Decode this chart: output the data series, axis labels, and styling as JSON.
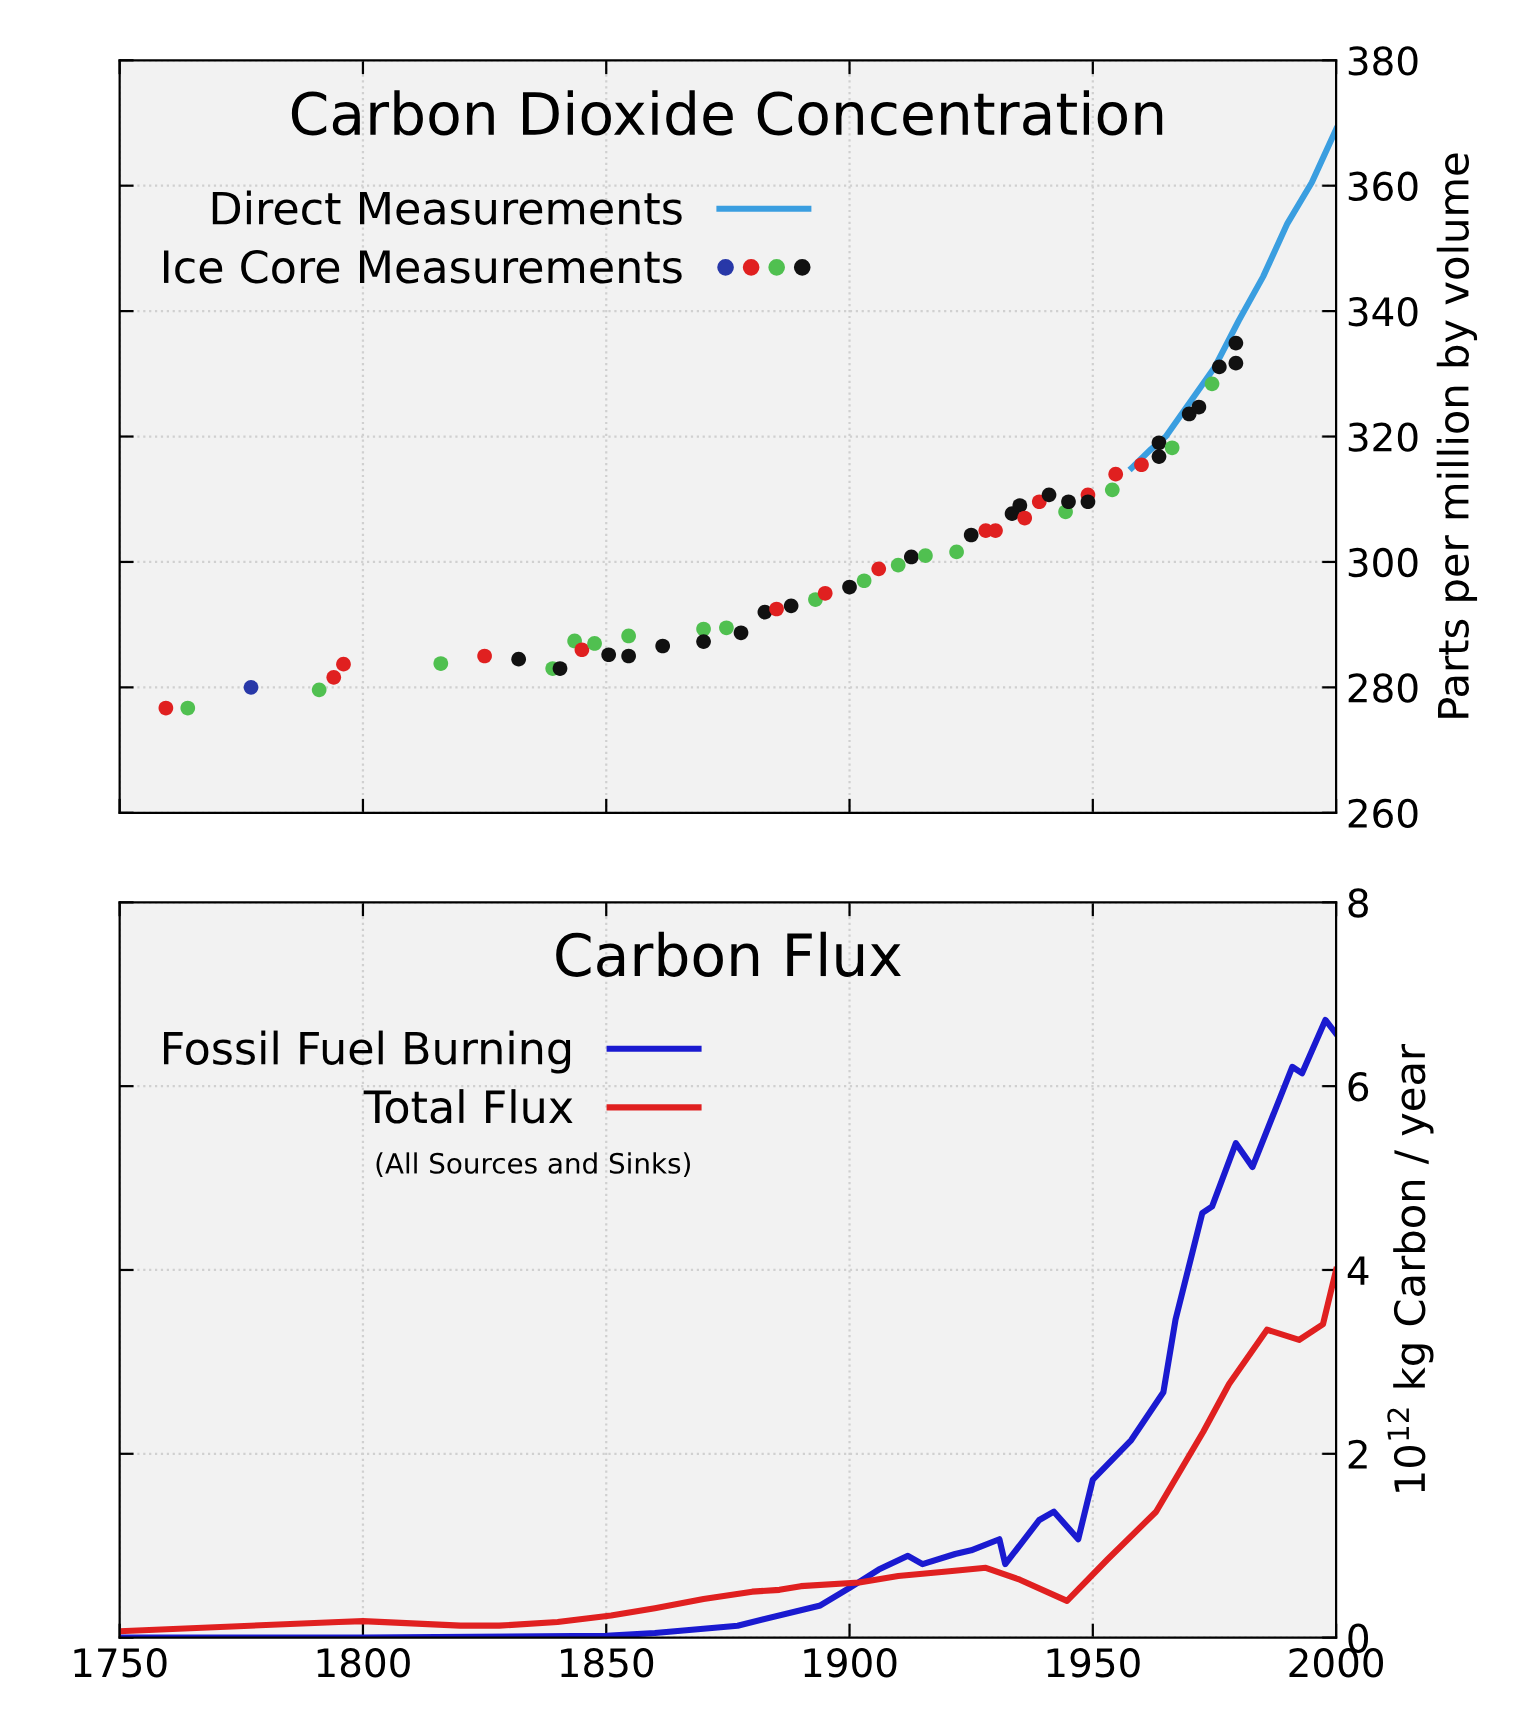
{
  "chart_data": [
    {
      "type": "scatter",
      "title": "Carbon Dioxide Concentration",
      "ylabel": "Parts per million by volume",
      "xlim": [
        1750,
        2000
      ],
      "xticks": [
        1750,
        1800,
        1850,
        1900,
        1950,
        2000
      ],
      "ylim": [
        260,
        380
      ],
      "yticks": [
        260,
        280,
        300,
        320,
        340,
        360,
        380
      ],
      "tick_labels": "y",
      "grid": true,
      "legend": "top left",
      "series": [
        {
          "name": "Direct Measurements",
          "type": "line",
          "color": "#3a9ee0",
          "marker": "none",
          "line_style": "solid",
          "x": [
            1958,
            1962,
            1965,
            1970,
            1975,
            1980,
            1985,
            1990,
            1995,
            2000
          ],
          "values": [
            315,
            318,
            320,
            325.5,
            331,
            338.5,
            345.5,
            354,
            360.5,
            369
          ]
        },
        {
          "name": "Ice Core Measurements",
          "type": "scatter",
          "marker": "circle",
          "x": [
            1759.5,
            1764,
            1777,
            1791,
            1794,
            1796,
            1816,
            1825,
            1832,
            1839,
            1840.5,
            1843.5,
            1845,
            1847.6,
            1850.5,
            1854.6,
            1854.6,
            1861.6,
            1870,
            1870,
            1874.7,
            1877.7,
            1882.6,
            1885,
            1888,
            1893,
            1895,
            1900,
            1903,
            1906,
            1910,
            1912.7,
            1915.6,
            1922,
            1925,
            1928,
            1930,
            1933.4,
            1935,
            1936,
            1939,
            1941,
            1944.4,
            1945,
            1949,
            1949,
            1954,
            1954.7,
            1960,
            1963.6,
            1963.6,
            1966.3,
            1969.8,
            1971.8,
            1974.5,
            1976,
            1979.4,
            1979.4
          ],
          "values": [
            276.7,
            276.7,
            280,
            279.6,
            281.6,
            283.7,
            283.8,
            285,
            284.5,
            283,
            283,
            287.4,
            286,
            287,
            285.2,
            285,
            288.2,
            286.6,
            289.3,
            287.3,
            289.5,
            288.7,
            292,
            292.5,
            293,
            294,
            295,
            296,
            297,
            298.9,
            299.5,
            300.8,
            301,
            301.6,
            304.3,
            305,
            305,
            307.7,
            309,
            307,
            309.6,
            310.7,
            308,
            309.6,
            310.7,
            309.6,
            311.5,
            314,
            315.5,
            319,
            316.8,
            318.2,
            323.6,
            324.7,
            328.4,
            331.1,
            331.7,
            334.9
          ],
          "colors": [
            "#e02020",
            "#50c050",
            "#2838a8",
            "#50c050",
            "#e02020",
            "#e02020",
            "#50c050",
            "#e02020",
            "#111111",
            "#50c050",
            "#111111",
            "#50c050",
            "#e02020",
            "#50c050",
            "#111111",
            "#111111",
            "#50c050",
            "#111111",
            "#50c050",
            "#111111",
            "#50c050",
            "#111111",
            "#111111",
            "#e02020",
            "#111111",
            "#50c050",
            "#e02020",
            "#111111",
            "#50c050",
            "#e02020",
            "#50c050",
            "#111111",
            "#50c050",
            "#50c050",
            "#111111",
            "#e02020",
            "#e02020",
            "#111111",
            "#111111",
            "#e02020",
            "#e02020",
            "#111111",
            "#50c050",
            "#111111",
            "#e02020",
            "#111111",
            "#50c050",
            "#e02020",
            "#e02020",
            "#111111",
            "#111111",
            "#50c050",
            "#111111",
            "#111111",
            "#50c050",
            "#111111",
            "#111111",
            "#111111"
          ]
        }
      ]
    },
    {
      "type": "line",
      "title": "Carbon Flux",
      "ylabel": "10$^{12}$ kg Carbon / year",
      "xlim": [
        1750,
        2000
      ],
      "xticks": [
        1750,
        1800,
        1850,
        1900,
        1950,
        2000
      ],
      "ylim": [
        0,
        8
      ],
      "yticks": [
        0,
        2,
        4,
        6,
        8
      ],
      "grid": true,
      "legend": "top left",
      "marker": "none",
      "line_style": "solid",
      "annotations": [
        "(All Sources and Sinks)"
      ],
      "series": [
        {
          "name": "Fossil Fuel Burning",
          "color": "#1a1ad0",
          "x": [
            1750,
            1800,
            1850,
            1860,
            1877,
            1894,
            1900,
            1906,
            1912,
            1915,
            1921.7,
            1925,
            1930.8,
            1932,
            1939,
            1942,
            1947,
            1950,
            1957.9,
            1964.5,
            1967,
            1972.5,
            1974.5,
            1979.4,
            1982.8,
            1991,
            1993,
            1997.8,
            2000
          ],
          "values": [
            0,
            0,
            0.02,
            0.05,
            0.13,
            0.35,
            0.54,
            0.74,
            0.89,
            0.8,
            0.91,
            0.95,
            1.07,
            0.8,
            1.28,
            1.37,
            1.07,
            1.72,
            2.15,
            2.67,
            3.46,
            4.62,
            4.69,
            5.38,
            5.12,
            6.21,
            6.14,
            6.72,
            6.57
          ]
        },
        {
          "name": "Total Flux",
          "color": "#e02020",
          "x": [
            1750,
            1795,
            1800,
            1820,
            1828,
            1840,
            1851,
            1860,
            1870,
            1880,
            1885.6,
            1890,
            1902,
            1910,
            1920,
            1928,
            1935,
            1944.7,
            1953,
            1963,
            1972.7,
            1978,
            1985.8,
            1992.4,
            1997.3,
            2000
          ],
          "values": [
            0.07,
            0.17,
            0.18,
            0.13,
            0.13,
            0.17,
            0.24,
            0.32,
            0.42,
            0.5,
            0.52,
            0.56,
            0.6,
            0.67,
            0.72,
            0.76,
            0.63,
            0.4,
            0.85,
            1.37,
            2.24,
            2.76,
            3.35,
            3.24,
            3.41,
            4.0
          ]
        }
      ]
    }
  ]
}
